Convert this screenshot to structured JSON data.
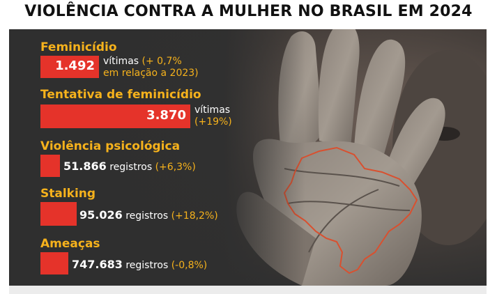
{
  "title": "VIOLÊNCIA CONTRA A MULHER NO BRASIL EM 2024",
  "stats": [
    {
      "label": "Feminicídio",
      "value": "1.492",
      "unit": "vítimas",
      "change": "(+ 0,7%",
      "change_line2": "em relação a 2023)"
    },
    {
      "label": "Tentativa de feminicídio",
      "value": "3.870",
      "unit": "vítimas",
      "change": "(+19%)"
    },
    {
      "label": "Violência psicológica",
      "value": "51.866",
      "unit": "registros",
      "change": "(+6,3%)"
    },
    {
      "label": "Stalking",
      "value": "95.026",
      "unit": "registros",
      "change": "(+18,2%)"
    },
    {
      "label": "Ameaças",
      "value": "747.683",
      "unit": "registros",
      "change": "(-0,8%)"
    }
  ],
  "colors": {
    "accent_yellow": "#f6b21c",
    "bar_red": "#e5332a",
    "panel_bg": "#2f2f2f"
  },
  "illustration": "raised-hand-with-brazil-map-outline"
}
